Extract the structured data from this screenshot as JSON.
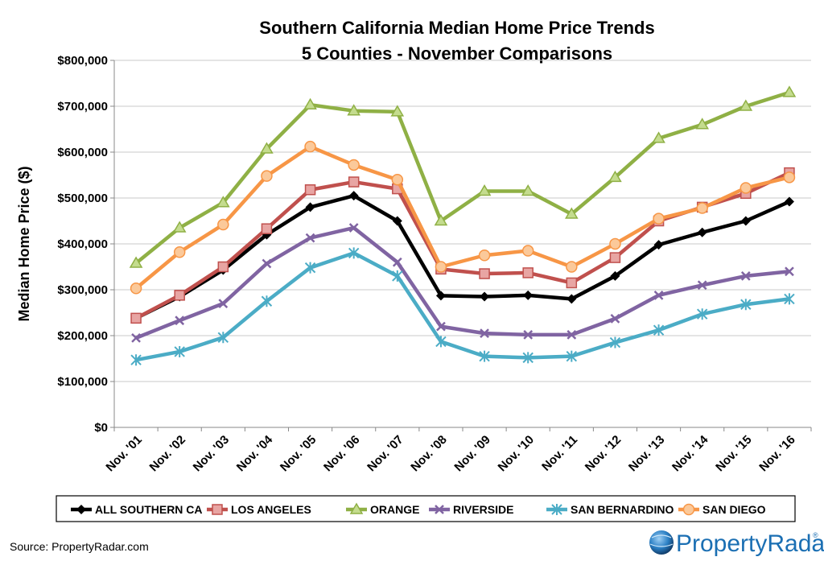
{
  "chart_data": {
    "type": "line",
    "title": "Southern California Median Home Price Trends",
    "subtitle": "5 Counties - November Comparisons",
    "xlabel": "",
    "ylabel": "Median Home Price ($)",
    "ylim": [
      0,
      800000
    ],
    "y_ticks": [
      "$0",
      "$100,000",
      "$200,000",
      "$300,000",
      "$400,000",
      "$500,000",
      "$600,000",
      "$700,000",
      "$800,000"
    ],
    "categories": [
      "Nov. '01",
      "Nov. '02",
      "Nov. '03",
      "Nov. '04",
      "Nov. '05",
      "Nov. '06",
      "Nov. '07",
      "Nov. '08",
      "Nov. '09",
      "Nov. '10",
      "Nov. '11",
      "Nov. '12",
      "Nov. '13",
      "Nov. '14",
      "Nov. '15",
      "Nov. '16"
    ],
    "grid": true,
    "legend_position": "bottom",
    "series": [
      {
        "name": "ALL SOUTHERN CA",
        "color": "#000000",
        "marker": "diamond",
        "values": [
          238000,
          285000,
          343000,
          420000,
          480000,
          505000,
          450000,
          287000,
          285000,
          288000,
          280000,
          330000,
          398000,
          425000,
          450000,
          492000
        ]
      },
      {
        "name": "LOS ANGELES",
        "color": "#c0504d",
        "marker": "square",
        "values": [
          238000,
          288000,
          350000,
          433000,
          518000,
          535000,
          520000,
          345000,
          335000,
          337000,
          315000,
          370000,
          450000,
          480000,
          510000,
          555000
        ]
      },
      {
        "name": "ORANGE",
        "color": "#8fb045",
        "marker": "triangle",
        "values": [
          358000,
          435000,
          490000,
          607000,
          703000,
          690000,
          688000,
          450000,
          515000,
          515000,
          465000,
          545000,
          630000,
          660000,
          700000,
          730000
        ]
      },
      {
        "name": "RIVERSIDE",
        "color": "#8064a2",
        "marker": "x",
        "values": [
          195000,
          233000,
          270000,
          357000,
          413000,
          435000,
          360000,
          220000,
          205000,
          202000,
          202000,
          237000,
          288000,
          310000,
          330000,
          340000
        ]
      },
      {
        "name": "SAN BERNARDINO",
        "color": "#4bacc6",
        "marker": "star",
        "values": [
          147000,
          165000,
          196000,
          275000,
          348000,
          380000,
          330000,
          187000,
          155000,
          152000,
          155000,
          185000,
          212000,
          247000,
          268000,
          280000
        ]
      },
      {
        "name": "SAN DIEGO",
        "color": "#f79646",
        "marker": "circle",
        "values": [
          303000,
          382000,
          442000,
          548000,
          612000,
          572000,
          540000,
          350000,
          375000,
          385000,
          350000,
          400000,
          455000,
          478000,
          522000,
          545000
        ]
      }
    ]
  },
  "source": "Source: PropertyRadar.com",
  "logo": {
    "text": "PropertyRadar",
    "trademark": "®"
  }
}
